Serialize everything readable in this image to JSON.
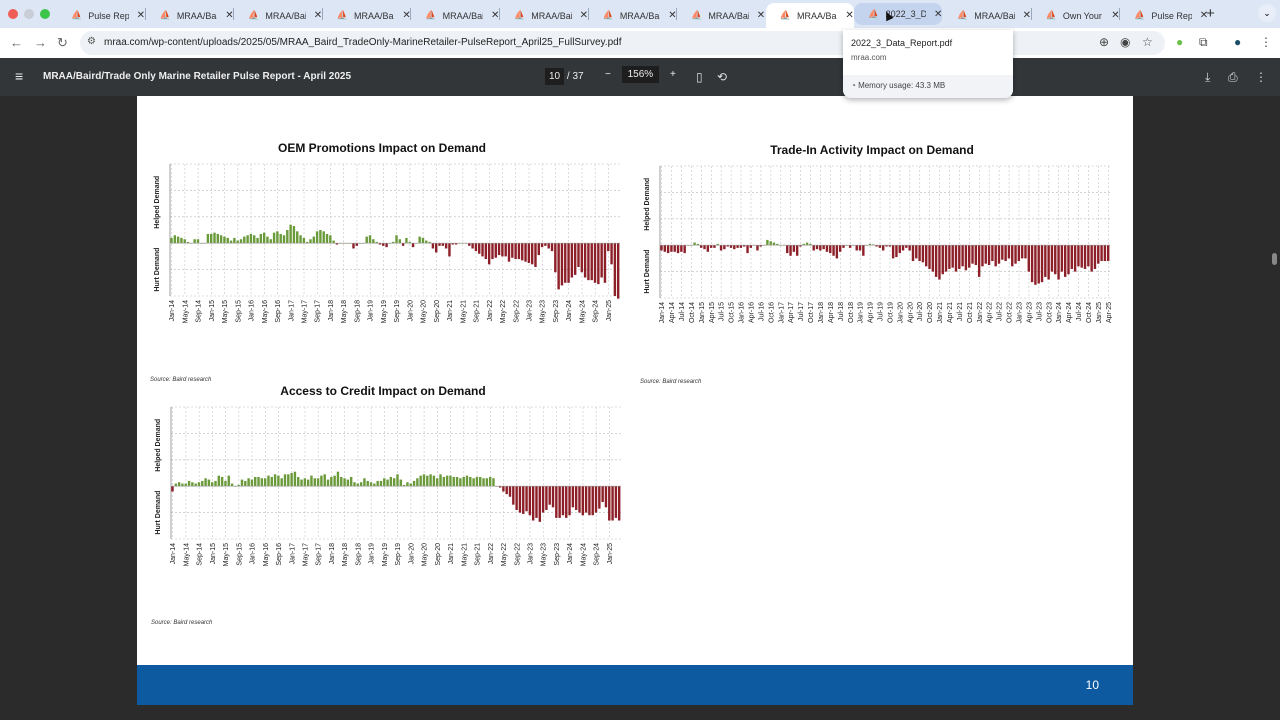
{
  "browser": {
    "tabs": [
      {
        "label": "Pulse Report"
      },
      {
        "label": "MRAA/Baird"
      },
      {
        "label": "MRAA/Baird"
      },
      {
        "label": "MRAA/Baird"
      },
      {
        "label": "MRAA/Baird"
      },
      {
        "label": "MRAA/Baird"
      },
      {
        "label": "MRAA/Baird"
      },
      {
        "label": "MRAA/Baird"
      },
      {
        "label": "MRAA/Baird",
        "active": true
      },
      {
        "label": "2022_3_Data_Report.pdf",
        "hover": true
      },
      {
        "label": "MRAA/Baird"
      },
      {
        "label": "Own Your"
      },
      {
        "label": "Pulse Report"
      }
    ],
    "url": "mraa.com/wp-content/uploads/2025/05/MRAA_Baird_TradeOnly-MarineRetailer-PulseReport_April25_FullSurvey.pdf",
    "tab_tooltip": {
      "title": "2022_3_Data_Report.pdf",
      "domain": "mraa.com",
      "memory": "Memory usage: 43.3 MB"
    }
  },
  "pdf_viewer": {
    "title": "MRAA/Baird/Trade Only Marine Retailer Pulse Report - April 2025",
    "current_page": "10",
    "total_pages": "/ 37",
    "zoom": "156%",
    "page_number_footer": "10"
  },
  "colors": {
    "helped": "#6a9a3a",
    "hurt": "#8c1f28",
    "footer": "#0d5aa1"
  },
  "chart_data": [
    {
      "type": "bar",
      "title": "OEM Promotions Impact on Demand",
      "source": "Source: Baird research",
      "ylabel_top": "Helped Demand",
      "ylabel_bottom": "Hurt Demand",
      "ylim": [
        -2,
        3
      ],
      "grid": true,
      "x_start": "Jan-14",
      "frequency": "monthly",
      "tick_labels": [
        "Jan-14",
        "May-14",
        "Sep-14",
        "Jan-15",
        "May-15",
        "Sep-15",
        "Jan-16",
        "May-16",
        "Sep-16",
        "Jan-17",
        "May-17",
        "Sep-17",
        "Jan-18",
        "May-18",
        "Sep-18",
        "Jan-19",
        "May-19",
        "Sep-19",
        "Jan-20",
        "May-20",
        "Sep-20",
        "Jan-21",
        "May-21",
        "Sep-21",
        "Jan-22",
        "May-22",
        "Sep-22",
        "Jan-23",
        "May-23",
        "Sep-23",
        "Jan-24",
        "May-24",
        "Sep-24",
        "Jan-25"
      ],
      "tick_every": 4,
      "values": [
        0.2,
        0.3,
        0.25,
        0.2,
        0.15,
        0.05,
        0,
        0.15,
        0.15,
        0,
        0,
        0.35,
        0.35,
        0.4,
        0.35,
        0.3,
        0.25,
        0.2,
        0.1,
        0.2,
        0.1,
        0.15,
        0.25,
        0.3,
        0.35,
        0.3,
        0.2,
        0.35,
        0.4,
        0.25,
        0.15,
        0.4,
        0.45,
        0.35,
        0.3,
        0.5,
        0.7,
        0.65,
        0.45,
        0.3,
        0.2,
        0.05,
        0.15,
        0.25,
        0.45,
        0.5,
        0.45,
        0.35,
        0.3,
        0.1,
        -0.05,
        0,
        0,
        0,
        0,
        -0.2,
        -0.1,
        0,
        0,
        0.25,
        0.3,
        0.15,
        0.05,
        -0.05,
        -0.1,
        -0.15,
        0,
        0.05,
        0.3,
        0.15,
        -0.1,
        0.2,
        0.05,
        -0.15,
        0,
        0.25,
        0.2,
        0.1,
        0.05,
        -0.2,
        -0.35,
        -0.1,
        -0.1,
        -0.2,
        -0.5,
        -0.05,
        -0.05,
        0,
        0,
        0,
        -0.1,
        -0.2,
        -0.3,
        -0.4,
        -0.5,
        -0.6,
        -0.8,
        -0.6,
        -0.55,
        -0.45,
        -0.5,
        -0.5,
        -0.7,
        -0.55,
        -0.6,
        -0.6,
        -0.65,
        -0.7,
        -0.75,
        -0.8,
        -0.9,
        -0.45,
        -0.15,
        -0.1,
        -0.2,
        -0.3,
        -1.1,
        -1.75,
        -1.6,
        -1.5,
        -1.5,
        -1.3,
        -1.2,
        -0.9,
        -1.1,
        -1.3,
        -1.4,
        -1.4,
        -1.5,
        -1.55,
        -1.3,
        -1.5,
        -0.3,
        -0.8,
        -2.0,
        -2.1
      ]
    },
    {
      "type": "bar",
      "title": "Trade-In Activity Impact on Demand",
      "source": "Source: Baird research",
      "ylabel_top": "Helped Demand",
      "ylabel_bottom": "Hurt Demand",
      "ylim": [
        -2,
        3
      ],
      "grid": true,
      "x_start": "Jan-14",
      "frequency": "monthly",
      "tick_labels": [
        "Jan-14",
        "Apr-14",
        "Jul-14",
        "Oct-14",
        "Jan-15",
        "Apr-15",
        "Jul-15",
        "Oct-15",
        "Jan-16",
        "Apr-16",
        "Jul-16",
        "Oct-16",
        "Jan-17",
        "Apr-17",
        "Jul-17",
        "Oct-17",
        "Jan-18",
        "Apr-18",
        "Jul-18",
        "Oct-18",
        "Jan-19",
        "Apr-19",
        "Jul-19",
        "Oct-19",
        "Jan-20",
        "Apr-20",
        "Jul-20",
        "Oct-20",
        "Jan-21",
        "Apr-21",
        "Jul-21",
        "Oct-21",
        "Jan-22",
        "Apr-22",
        "Jul-22",
        "Oct-22",
        "Jan-23",
        "Apr-23",
        "Jul-23",
        "Oct-23",
        "Jan-24",
        "Apr-24",
        "Jul-24",
        "Oct-24",
        "Jan-25",
        "Apr-25"
      ],
      "tick_every": 3,
      "values": [
        -0.2,
        -0.25,
        -0.3,
        -0.25,
        -0.25,
        -0.3,
        -0.25,
        -0.3,
        0,
        0,
        0.1,
        0.05,
        -0.1,
        -0.15,
        -0.25,
        -0.1,
        -0.1,
        0.05,
        -0.2,
        -0.15,
        -0.05,
        -0.1,
        -0.15,
        -0.1,
        -0.1,
        -0.05,
        -0.3,
        -0.1,
        0,
        -0.2,
        -0.05,
        0,
        0.2,
        0.15,
        0.1,
        0.05,
        0,
        0,
        -0.3,
        -0.4,
        -0.25,
        -0.4,
        -0.05,
        0.05,
        0.1,
        0.05,
        -0.2,
        -0.15,
        -0.2,
        -0.15,
        -0.25,
        -0.3,
        -0.4,
        -0.5,
        -0.25,
        -0.1,
        0,
        -0.1,
        0,
        -0.2,
        -0.2,
        -0.4,
        0,
        0.05,
        0.03,
        -0.05,
        -0.1,
        -0.2,
        -0.05,
        -0.05,
        -0.5,
        -0.45,
        -0.3,
        -0.2,
        -0.1,
        -0.2,
        -0.6,
        -0.5,
        -0.6,
        -0.65,
        -0.8,
        -0.9,
        -1.0,
        -1.2,
        -1.3,
        -1.1,
        -1.0,
        -0.9,
        -0.85,
        -1.0,
        -0.9,
        -0.8,
        -0.95,
        -0.85,
        -0.7,
        -0.75,
        -1.2,
        -0.8,
        -0.7,
        -0.75,
        -0.6,
        -0.8,
        -0.7,
        -0.55,
        -0.6,
        -0.5,
        -0.8,
        -0.7,
        -0.6,
        -0.5,
        -0.5,
        -1.0,
        -1.4,
        -1.5,
        -1.45,
        -1.4,
        -1.2,
        -1.3,
        -1.0,
        -1.1,
        -1.3,
        -1.0,
        -1.2,
        -1.1,
        -0.9,
        -1.0,
        -0.8,
        -0.85,
        -0.9,
        -0.8,
        -1.0,
        -0.9,
        -0.7,
        -0.6,
        -0.6,
        -0.6
      ]
    },
    {
      "type": "bar",
      "title": "Access to Credit Impact on Demand",
      "source": "Source: Baird research",
      "ylabel_top": "Helped Demand",
      "ylabel_bottom": "Hurt Demand",
      "ylim": [
        -2,
        3
      ],
      "grid": true,
      "x_start": "Jan-14",
      "frequency": "monthly",
      "tick_labels": [
        "Jan-14",
        "May-14",
        "Sep-14",
        "Jan-15",
        "May-15",
        "Sep-15",
        "Jan-16",
        "May-16",
        "Sep-16",
        "Jan-17",
        "May-17",
        "Sep-17",
        "Jan-18",
        "May-18",
        "Sep-18",
        "Jan-19",
        "May-19",
        "Sep-19",
        "Jan-20",
        "May-20",
        "Sep-20",
        "Jan-21",
        "May-21",
        "Sep-21",
        "Jan-22",
        "May-22",
        "Sep-22",
        "Jan-23",
        "May-23",
        "Sep-23",
        "Jan-24",
        "May-24",
        "Sep-24",
        "Jan-25"
      ],
      "tick_every": 4,
      "values": [
        -0.2,
        0.1,
        0.15,
        0.1,
        0.1,
        0.2,
        0.15,
        0.1,
        0.15,
        0.2,
        0.3,
        0.25,
        0.15,
        0.2,
        0.4,
        0.35,
        0.2,
        0.4,
        0.1,
        0,
        0.05,
        0.25,
        0.2,
        0.3,
        0.25,
        0.35,
        0.35,
        0.3,
        0.3,
        0.4,
        0.35,
        0.45,
        0.4,
        0.3,
        0.45,
        0.45,
        0.5,
        0.55,
        0.35,
        0.25,
        0.3,
        0.25,
        0.4,
        0.3,
        0.3,
        0.4,
        0.45,
        0.25,
        0.35,
        0.4,
        0.55,
        0.35,
        0.3,
        0.25,
        0.35,
        0.15,
        0.1,
        0.15,
        0.3,
        0.2,
        0.15,
        0.1,
        0.2,
        0.2,
        0.3,
        0.25,
        0.35,
        0.3,
        0.45,
        0.25,
        0.05,
        0.15,
        0.1,
        0.2,
        0.3,
        0.4,
        0.45,
        0.4,
        0.45,
        0.4,
        0.3,
        0.45,
        0.35,
        0.4,
        0.4,
        0.35,
        0.35,
        0.3,
        0.35,
        0.4,
        0.35,
        0.3,
        0.35,
        0.35,
        0.3,
        0.3,
        0.35,
        0.3,
        0,
        -0.05,
        -0.2,
        -0.3,
        -0.4,
        -0.7,
        -0.9,
        -1.0,
        -1.05,
        -0.95,
        -1.1,
        -1.3,
        -1.2,
        -1.35,
        -1.0,
        -0.9,
        -0.7,
        -0.8,
        -1.2,
        -1.2,
        -1.1,
        -1.2,
        -1.1,
        -0.8,
        -0.9,
        -1.0,
        -1.1,
        -1.0,
        -1.1,
        -1.1,
        -1.0,
        -0.85,
        -0.6,
        -0.8,
        -1.3,
        -1.3,
        -1.2,
        -1.3
      ]
    }
  ]
}
